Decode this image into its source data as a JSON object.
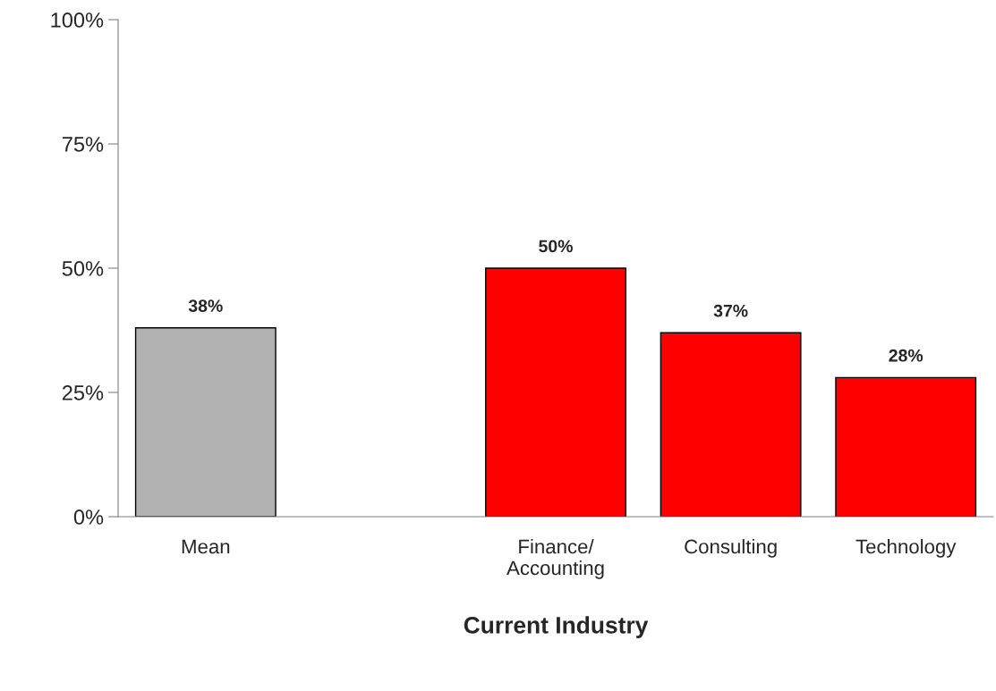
{
  "chart_data": {
    "type": "bar",
    "categories": [
      "Mean",
      null,
      "Finance/\nAccounting",
      "Consulting",
      "Technology"
    ],
    "values": [
      38,
      null,
      50,
      37,
      28
    ],
    "value_labels": [
      "38%",
      null,
      "50%",
      "37%",
      "28%"
    ],
    "colors": [
      "#b2b2b2",
      null,
      "#ff0000",
      "#ff0000",
      "#ff0000"
    ],
    "xlabel": "Current Industry",
    "ylim": [
      0,
      100
    ],
    "yticks": [
      {
        "value": 0,
        "label": "0%"
      },
      {
        "value": 25,
        "label": "25%"
      },
      {
        "value": 50,
        "label": "50%"
      },
      {
        "value": 75,
        "label": "75%"
      },
      {
        "value": 100,
        "label": "100%"
      }
    ],
    "grid": false,
    "legend": false
  }
}
